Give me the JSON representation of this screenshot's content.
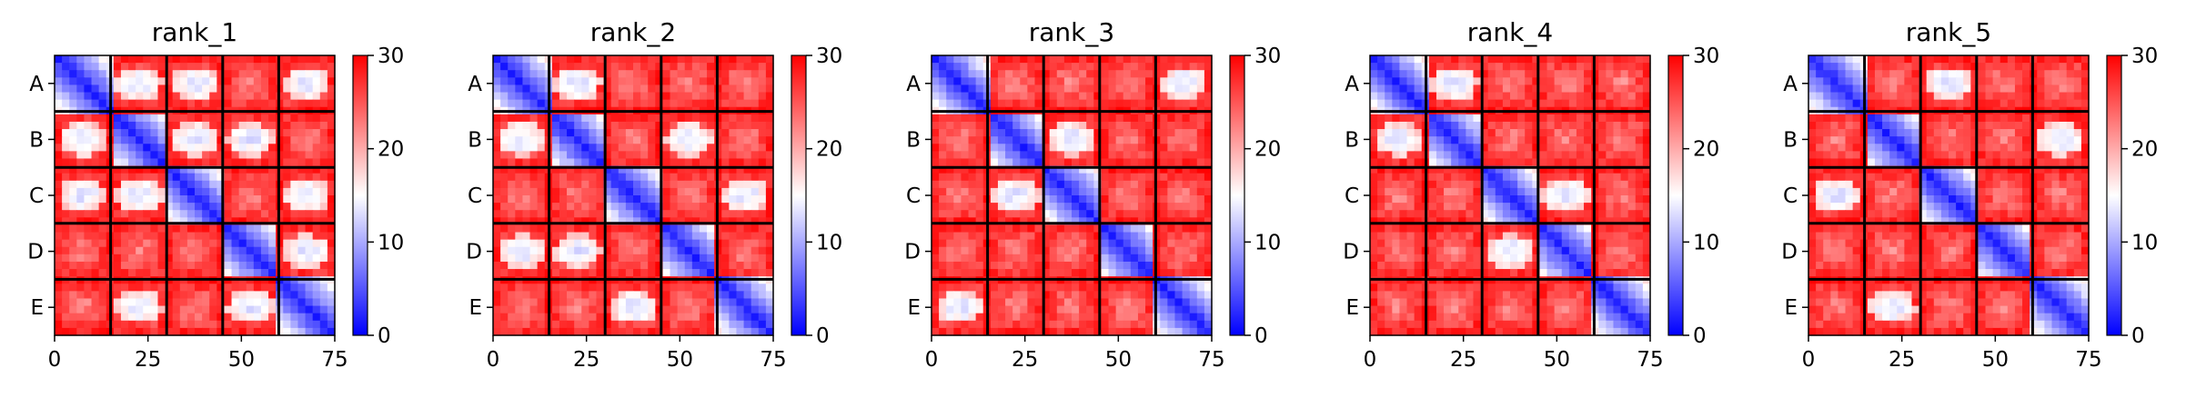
{
  "chart_data": [
    {
      "type": "heatmap",
      "title": "rank_1",
      "row_labels": [
        "A",
        "B",
        "C",
        "D",
        "E"
      ],
      "x_ticks": [
        "0",
        "25",
        "50",
        "75"
      ],
      "xlim": [
        0,
        75
      ],
      "colorbar": {
        "ticks": [
          "0",
          "10",
          "20",
          "30"
        ],
        "range": [
          0,
          30
        ],
        "colormap": "bwr"
      },
      "blocks": 5,
      "block_size": 15,
      "offdiag_patch": [
        [
          null,
          1,
          1,
          0,
          1
        ],
        [
          1,
          null,
          1,
          1,
          0
        ],
        [
          1,
          1,
          null,
          0,
          1
        ],
        [
          0,
          0,
          0,
          null,
          1
        ],
        [
          0,
          1,
          0,
          1,
          null
        ]
      ]
    },
    {
      "type": "heatmap",
      "title": "rank_2",
      "row_labels": [
        "A",
        "B",
        "C",
        "D",
        "E"
      ],
      "x_ticks": [
        "0",
        "25",
        "50",
        "75"
      ],
      "xlim": [
        0,
        75
      ],
      "colorbar": {
        "ticks": [
          "0",
          "10",
          "20",
          "30"
        ],
        "range": [
          0,
          30
        ],
        "colormap": "bwr"
      },
      "blocks": 5,
      "block_size": 15,
      "offdiag_patch": [
        [
          null,
          1,
          0,
          0,
          0
        ],
        [
          1,
          null,
          0,
          1,
          0
        ],
        [
          0,
          0,
          null,
          0,
          1
        ],
        [
          1,
          1,
          0,
          null,
          0
        ],
        [
          0,
          0,
          1,
          0,
          null
        ]
      ]
    },
    {
      "type": "heatmap",
      "title": "rank_3",
      "row_labels": [
        "A",
        "B",
        "C",
        "D",
        "E"
      ],
      "x_ticks": [
        "0",
        "25",
        "50",
        "75"
      ],
      "xlim": [
        0,
        75
      ],
      "colorbar": {
        "ticks": [
          "0",
          "10",
          "20",
          "30"
        ],
        "range": [
          0,
          30
        ],
        "colormap": "bwr"
      },
      "blocks": 5,
      "block_size": 15,
      "offdiag_patch": [
        [
          null,
          0,
          0,
          0,
          1
        ],
        [
          0,
          null,
          1,
          0,
          0
        ],
        [
          0,
          1,
          null,
          0,
          0
        ],
        [
          0,
          0,
          0,
          null,
          0
        ],
        [
          1,
          0,
          0,
          0,
          null
        ]
      ]
    },
    {
      "type": "heatmap",
      "title": "rank_4",
      "row_labels": [
        "A",
        "B",
        "C",
        "D",
        "E"
      ],
      "x_ticks": [
        "0",
        "25",
        "50",
        "75"
      ],
      "xlim": [
        0,
        75
      ],
      "colorbar": {
        "ticks": [
          "0",
          "10",
          "20",
          "30"
        ],
        "range": [
          0,
          30
        ],
        "colormap": "bwr"
      },
      "blocks": 5,
      "block_size": 15,
      "offdiag_patch": [
        [
          null,
          1,
          0,
          0,
          0
        ],
        [
          1,
          null,
          0,
          0,
          0
        ],
        [
          0,
          0,
          null,
          1,
          0
        ],
        [
          0,
          0,
          1,
          null,
          0
        ],
        [
          0,
          0,
          0,
          0,
          null
        ]
      ]
    },
    {
      "type": "heatmap",
      "title": "rank_5",
      "row_labels": [
        "A",
        "B",
        "C",
        "D",
        "E"
      ],
      "x_ticks": [
        "0",
        "25",
        "50",
        "75"
      ],
      "xlim": [
        0,
        75
      ],
      "colorbar": {
        "ticks": [
          "0",
          "10",
          "20",
          "30"
        ],
        "range": [
          0,
          30
        ],
        "colormap": "bwr"
      },
      "blocks": 5,
      "block_size": 15,
      "offdiag_patch": [
        [
          null,
          0,
          1,
          0,
          0
        ],
        [
          0,
          null,
          0,
          0,
          1
        ],
        [
          1,
          0,
          null,
          0,
          0
        ],
        [
          0,
          0,
          0,
          null,
          0
        ],
        [
          0,
          1,
          0,
          0,
          null
        ]
      ]
    }
  ]
}
